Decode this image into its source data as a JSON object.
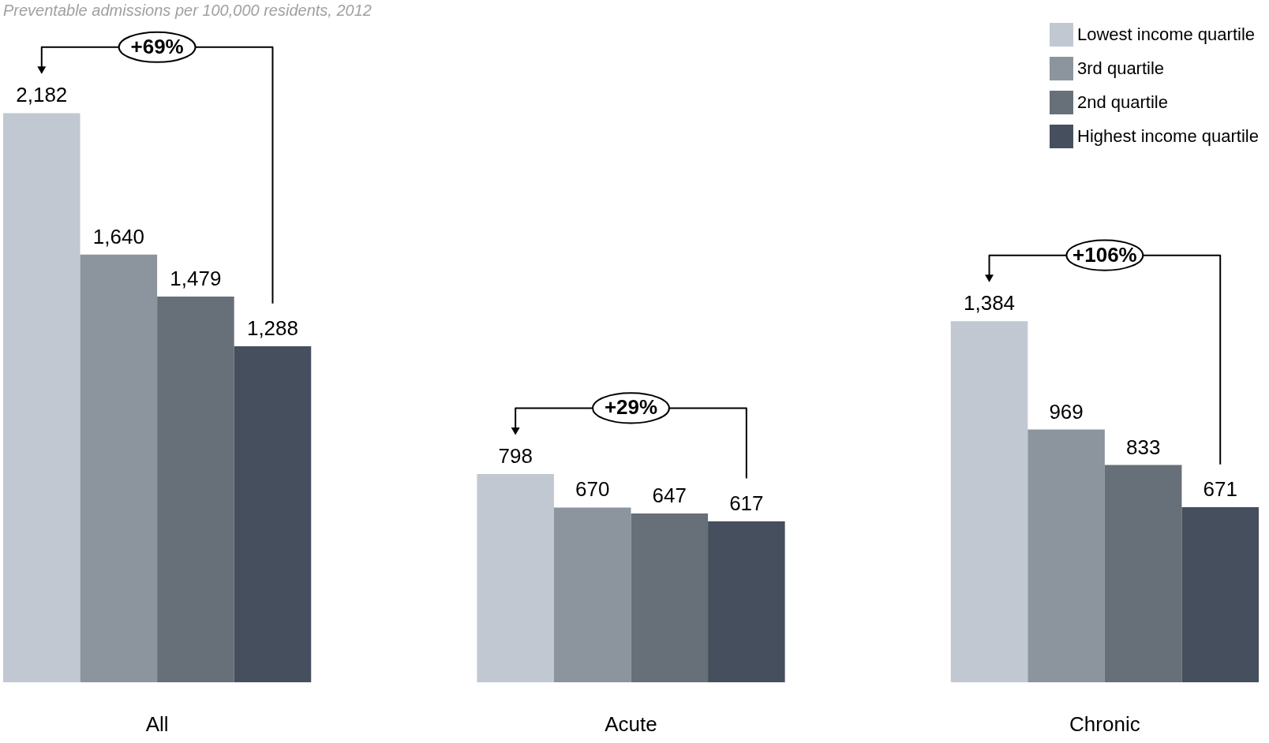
{
  "chart_data": {
    "type": "bar",
    "title": "Preventable admissions per 100,000 residents, 2012",
    "categories": [
      "All",
      "Acute",
      "Chronic"
    ],
    "series": [
      {
        "name": "Lowest income quartile",
        "color": "#c1c8d1",
        "values": [
          2182,
          798,
          1384
        ],
        "value_labels": [
          "2,182",
          "798",
          "1,384"
        ]
      },
      {
        "name": "3rd quartile",
        "color": "#8c959e",
        "values": [
          1640,
          670,
          969
        ],
        "value_labels": [
          "1,640",
          "670",
          "969"
        ]
      },
      {
        "name": "2nd quartile",
        "color": "#676f78",
        "values": [
          1479,
          647,
          833
        ],
        "value_labels": [
          "1,479",
          "647",
          "833"
        ]
      },
      {
        "name": "Highest income quartile",
        "color": "#464f5e",
        "values": [
          1288,
          617,
          671
        ],
        "value_labels": [
          "1,288",
          "617",
          "671"
        ]
      }
    ],
    "legend": "top right",
    "annotations": [
      "+69%",
      "+29%",
      "+106%"
    ]
  }
}
